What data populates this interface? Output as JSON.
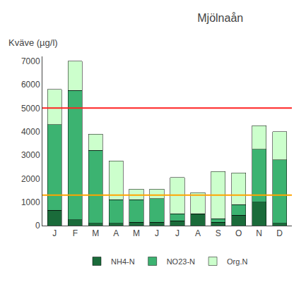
{
  "chart_data": {
    "type": "bar",
    "stacked": true,
    "title": "Mjölnaån",
    "ylabel": "Kväve (µg/l)",
    "categories": [
      "J",
      "F",
      "M",
      "A",
      "M",
      "J",
      "J",
      "A",
      "S",
      "O",
      "N",
      "D"
    ],
    "series": [
      {
        "name": "NH4-N",
        "color": "#1a6b3a",
        "values": [
          650,
          250,
          100,
          100,
          150,
          150,
          200,
          500,
          150,
          450,
          1000,
          100
        ]
      },
      {
        "name": "NO23-N",
        "color": "#3cb371",
        "values": [
          3650,
          5500,
          3100,
          1000,
          950,
          1000,
          300,
          0,
          150,
          450,
          2250,
          2700
        ]
      },
      {
        "name": "Org.N",
        "color": "#ccffcc",
        "values": [
          1500,
          1250,
          700,
          1650,
          450,
          400,
          1550,
          900,
          2000,
          1350,
          1000,
          1200
        ]
      }
    ],
    "hlines": [
      {
        "value": 5000,
        "color": "#ff2222"
      },
      {
        "value": 1300,
        "color": "#ffa500"
      }
    ],
    "ylim": [
      0,
      7200
    ],
    "yticks": [
      0,
      1000,
      2000,
      3000,
      4000,
      5000,
      6000,
      7000
    ],
    "grid": false,
    "legend": "bottom"
  }
}
